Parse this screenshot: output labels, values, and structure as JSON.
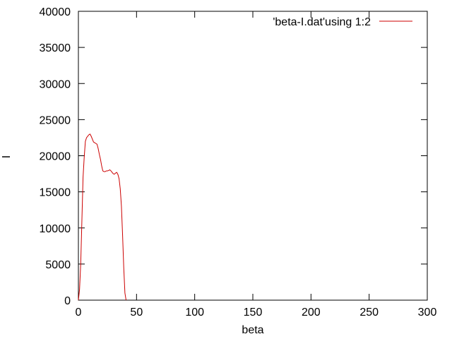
{
  "chart_data": {
    "type": "line",
    "xlabel": "beta",
    "ylabel": "I",
    "xlim": [
      0,
      300
    ],
    "ylim": [
      0,
      40000
    ],
    "xticks": [
      "0",
      "50",
      "100",
      "150",
      "200",
      "250",
      "300"
    ],
    "yticks": [
      "0",
      "5000",
      "10000",
      "15000",
      "20000",
      "25000",
      "30000",
      "35000",
      "40000"
    ],
    "grid": false,
    "legend_position": "top-right",
    "series": [
      {
        "name": "'beta-I.dat'using 1:2",
        "color": "#cc0000",
        "x": [
          0,
          1,
          2,
          3,
          4,
          5,
          6,
          7,
          8,
          9,
          10,
          11,
          12,
          13,
          14,
          15,
          16,
          17,
          18,
          19,
          20,
          21,
          22,
          23,
          24,
          25,
          26,
          27,
          28,
          29,
          30,
          31,
          32,
          33,
          34,
          35,
          36,
          37,
          38,
          39,
          40,
          41
        ],
        "y": [
          0,
          1500,
          5000,
          11000,
          17000,
          19800,
          22000,
          22500,
          22700,
          22900,
          23000,
          22700,
          22300,
          21900,
          21800,
          21700,
          21600,
          21000,
          20200,
          19500,
          18600,
          17900,
          17800,
          17800,
          17900,
          17900,
          17950,
          18050,
          17900,
          17700,
          17500,
          17450,
          17600,
          17700,
          17400,
          16800,
          15400,
          13000,
          9000,
          4500,
          1000,
          0
        ]
      }
    ]
  }
}
